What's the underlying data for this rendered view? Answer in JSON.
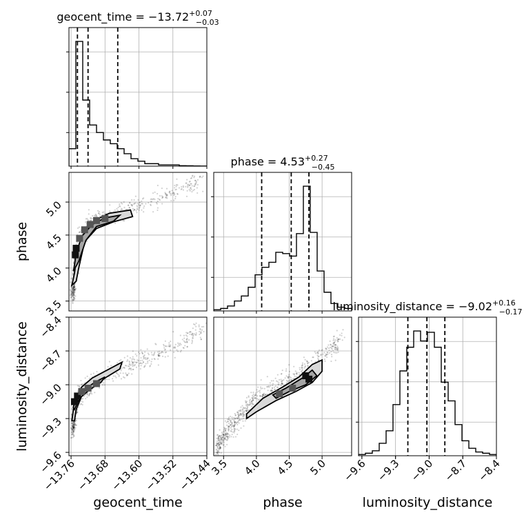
{
  "chart_data": {
    "type": "corner",
    "parameters": [
      {
        "name": "geocent_time",
        "label": "geocent_time",
        "range": [
          -13.765,
          -13.44
        ],
        "ticks": [
          -13.76,
          -13.68,
          -13.6,
          -13.52,
          -13.44
        ],
        "tick_labels": [
          "−13.76",
          "−13.68",
          "−13.60",
          "−13.52",
          "−13.44"
        ],
        "title": {
          "main": "geocent_time = −13.72",
          "sup": "+0.07",
          "sub": "−0.03"
        },
        "quantiles": [
          -13.745,
          -13.72,
          -13.65
        ],
        "hist_edges_start": -13.765,
        "hist_bin_width": 0.01625,
        "hist_counts": [
          0.14,
          1.0,
          0.53,
          0.33,
          0.27,
          0.21,
          0.18,
          0.14,
          0.1,
          0.06,
          0.04,
          0.02,
          0.02,
          0.01,
          0.01,
          0.01,
          0.004,
          0.003,
          0.002,
          0.001
        ]
      },
      {
        "name": "phase",
        "label": "phase",
        "range": [
          3.35,
          5.45
        ],
        "ticks": [
          3.5,
          4.0,
          4.5,
          5.0
        ],
        "tick_labels": [
          "3.5",
          "4.0",
          "4.5",
          "5.0"
        ],
        "title": {
          "main": "phase = 4.53",
          "sup": "+0.27",
          "sub": "−0.45"
        },
        "quantiles": [
          4.08,
          4.53,
          4.8
        ],
        "hist_edges_start": 3.35,
        "hist_bin_width": 0.105,
        "hist_counts": [
          0.01,
          0.02,
          0.04,
          0.08,
          0.12,
          0.19,
          0.29,
          0.35,
          0.39,
          0.47,
          0.46,
          0.44,
          0.62,
          1.0,
          0.63,
          0.32,
          0.15,
          0.06,
          0.03,
          0.02
        ]
      },
      {
        "name": "luminosity_distance",
        "label": "luminosity_distance",
        "range": [
          -9.63,
          -8.4
        ],
        "ticks": [
          -9.6,
          -9.3,
          -9.0,
          -8.7,
          -8.4
        ],
        "tick_labels": [
          "−9.6",
          "−9.3",
          "−9.0",
          "−8.7",
          "−8.4"
        ],
        "title": {
          "main": "luminosity_distance = −9.02",
          "sup": "+0.16",
          "sub": "−0.17"
        },
        "quantiles": [
          -9.19,
          -9.02,
          -8.86
        ],
        "hist_edges_start": -9.63,
        "hist_bin_width": 0.0615,
        "hist_counts": [
          0.01,
          0.02,
          0.04,
          0.1,
          0.2,
          0.41,
          0.68,
          0.87,
          1.0,
          0.92,
          0.99,
          0.87,
          0.59,
          0.44,
          0.25,
          0.12,
          0.06,
          0.03,
          0.02,
          0.01
        ]
      }
    ],
    "pairs": [
      {
        "x": "geocent_time",
        "y": "phase",
        "ridge": [
          [
            -13.755,
            3.6
          ],
          [
            -13.752,
            3.9
          ],
          [
            -13.748,
            4.2
          ],
          [
            -13.74,
            4.4
          ],
          [
            -13.725,
            4.6
          ],
          [
            -13.71,
            4.7
          ],
          [
            -13.68,
            4.78
          ],
          [
            -13.64,
            4.85
          ],
          [
            -13.6,
            4.95
          ],
          [
            -13.56,
            5.05
          ],
          [
            -13.52,
            5.15
          ],
          [
            -13.48,
            5.25
          ],
          [
            -13.45,
            5.35
          ]
        ],
        "contour_outer": [
          [
            -13.758,
            3.74
          ],
          [
            -13.752,
            3.92
          ],
          [
            -13.746,
            4.2
          ],
          [
            -13.73,
            4.5
          ],
          [
            -13.705,
            4.72
          ],
          [
            -13.67,
            4.83
          ],
          [
            -13.62,
            4.88
          ],
          [
            -13.615,
            4.78
          ],
          [
            -13.66,
            4.7
          ],
          [
            -13.7,
            4.6
          ],
          [
            -13.728,
            4.4
          ],
          [
            -13.742,
            4.0
          ],
          [
            -13.748,
            3.8
          ]
        ],
        "contour_inner": [
          [
            -13.754,
            3.96
          ],
          [
            -13.748,
            4.22
          ],
          [
            -13.735,
            4.48
          ],
          [
            -13.71,
            4.66
          ],
          [
            -13.68,
            4.76
          ],
          [
            -13.645,
            4.8
          ],
          [
            -13.66,
            4.71
          ],
          [
            -13.7,
            4.63
          ],
          [
            -13.725,
            4.42
          ],
          [
            -13.742,
            4.1
          ]
        ],
        "dense_cells": [
          [
            -13.75,
            4.2
          ],
          [
            -13.748,
            4.3
          ],
          [
            -13.74,
            4.45
          ],
          [
            -13.728,
            4.58
          ],
          [
            -13.715,
            4.66
          ],
          [
            -13.7,
            4.72
          ],
          [
            -13.68,
            4.75
          ]
        ]
      },
      {
        "x": "geocent_time",
        "y": "luminosity_distance",
        "ridge": [
          [
            -13.755,
            -9.4
          ],
          [
            -13.752,
            -9.22
          ],
          [
            -13.745,
            -9.12
          ],
          [
            -13.73,
            -9.06
          ],
          [
            -13.71,
            -9.0
          ],
          [
            -13.68,
            -8.93
          ],
          [
            -13.64,
            -8.86
          ],
          [
            -13.6,
            -8.8
          ],
          [
            -13.56,
            -8.73
          ],
          [
            -13.52,
            -8.66
          ],
          [
            -13.48,
            -8.58
          ],
          [
            -13.45,
            -8.52
          ]
        ],
        "contour_outer": [
          [
            -13.758,
            -9.32
          ],
          [
            -13.752,
            -9.14
          ],
          [
            -13.735,
            -9.02
          ],
          [
            -13.71,
            -8.94
          ],
          [
            -13.67,
            -8.86
          ],
          [
            -13.64,
            -8.8
          ],
          [
            -13.645,
            -8.86
          ],
          [
            -13.68,
            -8.94
          ],
          [
            -13.71,
            -9.02
          ],
          [
            -13.735,
            -9.1
          ],
          [
            -13.748,
            -9.22
          ],
          [
            -13.752,
            -9.32
          ]
        ],
        "contour_inner": [
          [
            -13.755,
            -9.2
          ],
          [
            -13.745,
            -9.1
          ],
          [
            -13.725,
            -9.03
          ],
          [
            -13.7,
            -8.97
          ],
          [
            -13.68,
            -8.93
          ],
          [
            -13.69,
            -8.98
          ],
          [
            -13.715,
            -9.04
          ],
          [
            -13.74,
            -9.12
          ],
          [
            -13.752,
            -9.22
          ]
        ],
        "dense_cells": [
          [
            -13.752,
            -9.15
          ],
          [
            -13.745,
            -9.1
          ],
          [
            -13.735,
            -9.06
          ],
          [
            -13.72,
            -9.03
          ],
          [
            -13.7,
            -8.99
          ]
        ]
      },
      {
        "x": "phase",
        "y": "luminosity_distance",
        "ridge": [
          [
            3.4,
            -9.55
          ],
          [
            3.6,
            -9.38
          ],
          [
            3.8,
            -9.25
          ],
          [
            4.0,
            -9.12
          ],
          [
            4.2,
            -9.05
          ],
          [
            4.4,
            -8.98
          ],
          [
            4.6,
            -8.92
          ],
          [
            4.8,
            -8.85
          ],
          [
            5.0,
            -8.75
          ],
          [
            5.2,
            -8.65
          ],
          [
            5.3,
            -8.6
          ]
        ],
        "contour_outer": [
          [
            3.85,
            -9.26
          ],
          [
            4.1,
            -9.12
          ],
          [
            4.4,
            -9.02
          ],
          [
            4.65,
            -8.93
          ],
          [
            4.85,
            -8.82
          ],
          [
            5.0,
            -8.78
          ],
          [
            5.0,
            -8.88
          ],
          [
            4.85,
            -8.98
          ],
          [
            4.6,
            -9.06
          ],
          [
            4.3,
            -9.14
          ],
          [
            4.0,
            -9.24
          ],
          [
            3.85,
            -9.3
          ]
        ],
        "contour_inner": [
          [
            4.25,
            -9.09
          ],
          [
            4.45,
            -9.03
          ],
          [
            4.7,
            -8.94
          ],
          [
            4.85,
            -8.87
          ],
          [
            4.92,
            -8.92
          ],
          [
            4.75,
            -9.0
          ],
          [
            4.5,
            -9.06
          ],
          [
            4.3,
            -9.12
          ]
        ],
        "dense_cells": [
          [
            4.75,
            -8.92
          ],
          [
            4.8,
            -8.95
          ],
          [
            4.55,
            -9.03
          ],
          [
            4.35,
            -9.08
          ]
        ]
      }
    ],
    "grid": true
  }
}
